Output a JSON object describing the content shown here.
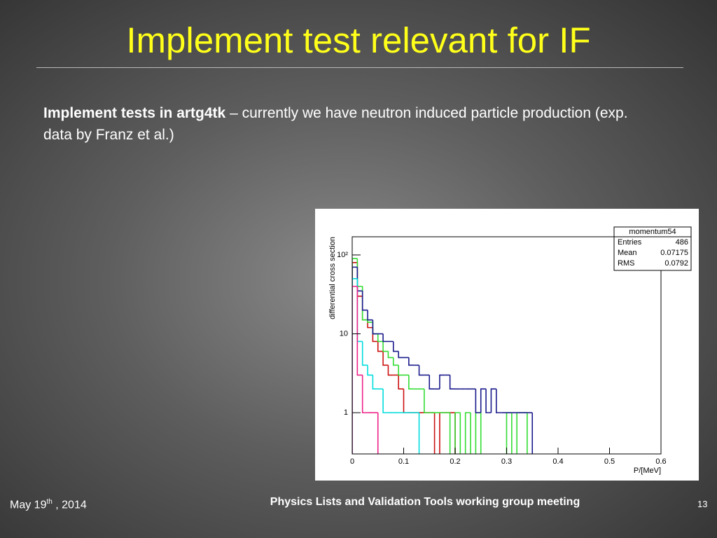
{
  "slide": {
    "title": "Implement test relevant for IF",
    "body": {
      "bold": "Implement tests in artg4tk",
      "text": " – currently we have neutron induced particle production (exp. data by Franz et al.)"
    },
    "footer": {
      "date_day": "May 19",
      "date_sup": "th",
      "date_year": " , 2014",
      "meeting": "Physics Lists and Validation Tools working group meeting",
      "page": "13"
    }
  },
  "chart_data": {
    "type": "histogram",
    "y_label": "differential cross section",
    "x_label": "P/[MeV]",
    "log_y": true,
    "xlim": [
      0,
      0.6
    ],
    "xticks": [
      0,
      0.1,
      0.2,
      0.3,
      0.4,
      0.5,
      0.6
    ],
    "ylim": [
      0.3,
      170
    ],
    "yticks": [
      1,
      10,
      {
        "value": 100,
        "label": "10²"
      }
    ],
    "bins": [
      0,
      0.01,
      0.02,
      0.03,
      0.04,
      0.05,
      0.06,
      0.07,
      0.08,
      0.09,
      0.1,
      0.11,
      0.12,
      0.13,
      0.14,
      0.15,
      0.16,
      0.17,
      0.18,
      0.19,
      0.2,
      0.21,
      0.22,
      0.23,
      0.24,
      0.25,
      0.26,
      0.27,
      0.28,
      0.29,
      0.3,
      0.31,
      0.32,
      0.33,
      0.34,
      0.35,
      0.36
    ],
    "series": [
      {
        "color": "#cc1111",
        "values": [
          80,
          30,
          15,
          12,
          8,
          6,
          4,
          3,
          3,
          2,
          1,
          1,
          1,
          1,
          1,
          1,
          0,
          1,
          1,
          1,
          0,
          0,
          0,
          0,
          0,
          0,
          0,
          0,
          0,
          0,
          0,
          0,
          0,
          0,
          0,
          0
        ]
      },
      {
        "color": "#33dd33",
        "values": [
          90,
          40,
          15,
          14,
          10,
          8,
          6,
          5,
          4,
          3,
          3,
          2,
          2,
          2,
          1,
          1,
          1,
          1,
          1,
          0,
          1,
          0,
          1,
          0,
          1,
          0,
          0,
          0,
          0,
          0,
          1,
          0,
          1,
          1,
          0,
          0
        ]
      },
      {
        "color": "#1a1a8c",
        "values": [
          70,
          35,
          20,
          15,
          10,
          10,
          8,
          8,
          6,
          5,
          5,
          4,
          4,
          3,
          3,
          2,
          2,
          3,
          3,
          2,
          2,
          2,
          2,
          2,
          1,
          2,
          1,
          2,
          1,
          1,
          1,
          1,
          1,
          1,
          1,
          0
        ]
      },
      {
        "color": "#00dddd",
        "values": [
          50,
          8,
          4,
          3,
          2,
          2,
          1,
          1,
          1,
          1,
          1,
          1,
          1,
          0,
          0,
          0,
          0,
          0,
          0,
          0,
          0,
          0,
          0,
          0,
          0,
          0,
          0,
          0,
          0,
          0,
          0,
          0,
          0,
          0,
          0,
          0
        ]
      },
      {
        "color": "#ee2288",
        "values": [
          40,
          3,
          1,
          1,
          1,
          0,
          0,
          0,
          0,
          0,
          0,
          0,
          0,
          0,
          0,
          0,
          0,
          0,
          0,
          0,
          0,
          0,
          0,
          0,
          0,
          0,
          0,
          0,
          0,
          0,
          0,
          0,
          0,
          0,
          0,
          0
        ]
      }
    ],
    "stats": {
      "name": "momentum54",
      "entries_label": "Entries",
      "entries": 486,
      "mean_label": "Mean",
      "mean": 0.07175,
      "rms_label": "RMS",
      "rms": 0.0792
    }
  }
}
